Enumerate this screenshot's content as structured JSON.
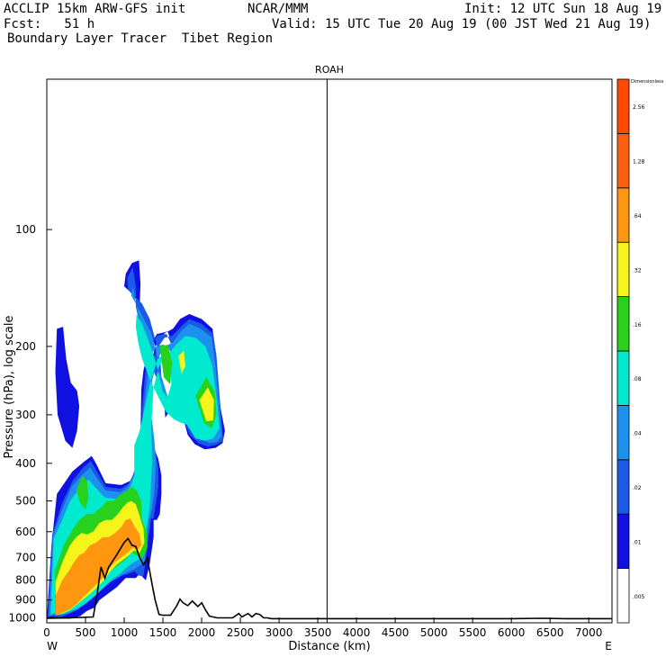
{
  "header": {
    "model": "ACCLIP 15km ARW-GFS init",
    "org": "NCAR/MMM",
    "init": "Init: 12 UTC Sun 18 Aug 19",
    "fcst": "Fcst:   51 h",
    "valid": "Valid: 15 UTC Tue 20 Aug 19 (00 JST Wed 21 Aug 19)",
    "subtitle": "Boundary Layer Tracer  Tibet Region"
  },
  "chart_data": {
    "type": "heatmap",
    "title": "ROAH",
    "xlabel": "Distance (km)",
    "ylabel": "Pressure (hPa), log scale",
    "x_ticks": [
      0,
      500,
      1000,
      1500,
      2000,
      2500,
      3000,
      3500,
      4000,
      4500,
      5000,
      5500,
      6000,
      6500,
      7000
    ],
    "x_end_labels": {
      "left": "W",
      "right": "E"
    },
    "y_ticks": [
      100,
      200,
      300,
      400,
      500,
      600,
      700,
      800,
      900,
      1000
    ],
    "y_scale": "log",
    "xlim": [
      0,
      7300
    ],
    "ylim": [
      1030,
      41
    ],
    "marker_x": 3620,
    "colorbar": {
      "unit_label": "Dimensionless",
      "levels": [
        ".005",
        ".01",
        ".02",
        ".04",
        ".08",
        ".16",
        ".32",
        ".64",
        "1.28",
        "2.56"
      ],
      "colors": [
        "#ffffff",
        "#1010e0",
        "#1a5ae6",
        "#1e90ee",
        "#00ead0",
        "#28d21c",
        "#f5f51c",
        "#ff9610",
        "#ff6010",
        "#ff4a00"
      ]
    },
    "terrain": {
      "x": [
        0,
        300,
        600,
        650,
        700,
        750,
        800,
        900,
        1000,
        1050,
        1100,
        1150,
        1200,
        1250,
        1300,
        1330,
        1360,
        1400,
        1450,
        1500,
        1600,
        1680,
        1720,
        1760,
        1820,
        1880,
        1950,
        2000,
        2050,
        2100,
        2200,
        2300,
        2400,
        2480,
        2520,
        2560,
        2600,
        2650,
        2700,
        2750,
        2800,
        2850,
        2900,
        3000,
        3500,
        4000,
        4500,
        5000,
        5500,
        6000,
        6400,
        6700,
        7000,
        7300
      ],
      "p": [
        1003,
        1000,
        995,
        870,
        740,
        790,
        740,
        690,
        640,
        625,
        650,
        655,
        700,
        730,
        700,
        760,
        820,
        900,
        980,
        985,
        985,
        930,
        895,
        915,
        930,
        905,
        935,
        915,
        955,
        990,
        1000,
        1000,
        1000,
        975,
        995,
        985,
        975,
        995,
        975,
        980,
        1000,
        1000,
        1005,
        1005,
        1005,
        1005,
        1005,
        1005,
        1005,
        1005,
        1003,
        1005,
        1005,
        1005
      ]
    },
    "tracer_regions": [
      {
        "level": 1,
        "x": [
          110,
          130,
          210,
          250,
          310,
          390,
          420,
          390,
          330,
          240,
          140
        ],
        "p": [
          233,
          180,
          178,
          215,
          248,
          260,
          285,
          330,
          365,
          350,
          300
        ]
      },
      {
        "level": 1,
        "x": [
          60,
          130,
          330,
          490,
          580,
          640,
          760,
          960,
          1100,
          1150,
          1210,
          1220,
          1250,
          1330,
          1420,
          1560,
          1620,
          1680,
          1700,
          1670,
          1590,
          1530,
          1520,
          1490,
          1460,
          1400,
          1300,
          1200,
          1080,
          1000,
          1020,
          1100,
          1190,
          1210,
          1200,
          1230,
          1270,
          1360,
          1470,
          1540,
          1610,
          1700,
          1760,
          1820,
          1910,
          2040,
          2180,
          2270,
          2300,
          2240,
          2180,
          2140,
          2000,
          1840,
          1720,
          1630,
          1520,
          1400,
          1330,
          1290,
          1300,
          1370,
          1440,
          1480,
          1480,
          1460,
          1420,
          1380,
          1380,
          1330,
          1280,
          1250,
          1200,
          1150,
          1090,
          1020,
          900,
          780,
          680,
          620,
          520,
          430,
          300,
          180,
          80,
          20,
          0
        ],
        "p": [
          650,
          480,
          420,
          395,
          383,
          402,
          450,
          455,
          442,
          420,
          345,
          258,
          230,
          200,
          186,
          183,
          197,
          222,
          258,
          285,
          293,
          305,
          285,
          250,
          225,
          200,
          175,
          155,
          145,
          140,
          130,
          122,
          120,
          138,
          158,
          172,
          188,
          213,
          252,
          280,
          292,
          300,
          305,
          338,
          357,
          368,
          365,
          355,
          330,
          285,
          205,
          180,
          170,
          165,
          170,
          180,
          185,
          200,
          230,
          280,
          330,
          360,
          390,
          430,
          480,
          540,
          560,
          560,
          620,
          725,
          800,
          790,
          770,
          790,
          790,
          790,
          835,
          870,
          900,
          940,
          960,
          990,
          1005,
          1005,
          1000,
          1005,
          1005
        ]
      },
      {
        "level": 2,
        "x": [
          70,
          200,
          330,
          470,
          570,
          640,
          760,
          960,
          1060,
          1110,
          1170,
          1220,
          1230,
          1270,
          1350,
          1420,
          1500,
          1550,
          1610,
          1660,
          1690,
          1660,
          1590,
          1520,
          1480,
          1470,
          1410,
          1330,
          1230,
          1130,
          1050,
          1040,
          1110,
          1150,
          1150,
          1190,
          1250,
          1340,
          1470,
          1540,
          1620,
          1690,
          1760,
          1850,
          1960,
          2080,
          2190,
          2280,
          2250,
          2190,
          2140,
          2000,
          1840,
          1730,
          1620,
          1520,
          1410,
          1340,
          1320,
          1340,
          1400,
          1440,
          1440,
          1400,
          1380,
          1350,
          1320,
          1280,
          1250,
          1200,
          1130,
          1060,
          950,
          800,
          680,
          600,
          500,
          410,
          300,
          180,
          80,
          10
        ],
        "p": [
          610,
          505,
          445,
          410,
          395,
          418,
          460,
          465,
          450,
          430,
          395,
          350,
          290,
          235,
          198,
          188,
          186,
          186,
          198,
          225,
          258,
          282,
          292,
          283,
          245,
          220,
          195,
          170,
          155,
          148,
          143,
          133,
          125,
          140,
          158,
          172,
          195,
          220,
          258,
          285,
          296,
          303,
          308,
          338,
          355,
          362,
          358,
          350,
          300,
          210,
          185,
          175,
          170,
          178,
          188,
          190,
          205,
          235,
          290,
          335,
          370,
          410,
          460,
          520,
          555,
          555,
          610,
          700,
          780,
          780,
          760,
          770,
          780,
          800,
          845,
          880,
          915,
          950,
          975,
          995,
          990,
          995
        ]
      },
      {
        "level": 3,
        "x": [
          80,
          200,
          320,
          450,
          560,
          640,
          760,
          950,
          1040,
          1100,
          1170,
          1200,
          1240,
          1330,
          1410,
          1500,
          1560,
          1620,
          1660,
          1640,
          1580,
          1520,
          1470,
          1420,
          1350,
          1240,
          1150,
          1090,
          1110,
          1140,
          1180,
          1250,
          1340,
          1470,
          1550,
          1630,
          1700,
          1780,
          1870,
          1980,
          2100,
          2200,
          2260,
          2230,
          2180,
          2130,
          1990,
          1840,
          1740,
          1630,
          1530,
          1430,
          1360,
          1350,
          1390,
          1410,
          1390,
          1360,
          1320,
          1290,
          1260,
          1210,
          1130,
          1060,
          960,
          820,
          700,
          620,
          520,
          420,
          300,
          190,
          100,
          30
        ],
        "p": [
          615,
          525,
          460,
          430,
          410,
          435,
          470,
          475,
          460,
          440,
          410,
          360,
          300,
          215,
          200,
          198,
          200,
          212,
          238,
          268,
          283,
          275,
          245,
          210,
          185,
          168,
          155,
          148,
          140,
          150,
          165,
          182,
          208,
          235,
          265,
          290,
          300,
          305,
          312,
          345,
          355,
          352,
          340,
          290,
          225,
          190,
          180,
          175,
          182,
          195,
          200,
          215,
          245,
          300,
          350,
          400,
          470,
          525,
          560,
          650,
          720,
          730,
          750,
          760,
          780,
          810,
          850,
          880,
          915,
          945,
          970,
          985,
          980,
          990
        ]
      },
      {
        "level": 4,
        "x": [
          90,
          200,
          300,
          420,
          540,
          620,
          750,
          920,
          1010,
          1080,
          1130,
          1130,
          1200,
          1330,
          1430,
          1520,
          1590,
          1610,
          1560,
          1500,
          1440,
          1370,
          1300,
          1230,
          1160,
          1150,
          1180,
          1230,
          1320,
          1440,
          1540,
          1640,
          1720,
          1810,
          1920,
          2040,
          2150,
          2230,
          2200,
          2140,
          2050,
          1920,
          1790,
          1670,
          1560,
          1450,
          1380,
          1350,
          1360,
          1330,
          1290,
          1260,
          1200,
          1120,
          1040,
          950,
          830,
          720,
          640,
          540,
          440,
          320,
          220,
          120,
          50
        ],
        "p": [
          625,
          560,
          500,
          465,
          440,
          460,
          490,
          495,
          480,
          460,
          430,
          360,
          330,
          250,
          215,
          210,
          225,
          250,
          270,
          262,
          232,
          208,
          190,
          175,
          165,
          178,
          195,
          215,
          240,
          270,
          295,
          308,
          314,
          318,
          345,
          350,
          345,
          325,
          280,
          225,
          200,
          190,
          188,
          198,
          210,
          225,
          255,
          320,
          400,
          520,
          580,
          680,
          705,
          720,
          740,
          770,
          800,
          840,
          870,
          905,
          935,
          960,
          975,
          970,
          980
        ]
      },
      {
        "level": 5,
        "x": [
          100,
          220,
          340,
          420,
          520,
          600,
          700,
          780,
          860,
          960,
          1040,
          1100,
          1160,
          1220,
          1230,
          1290,
          1300,
          1240,
          1160,
          1090,
          1010,
          930,
          850,
          760,
          680,
          600,
          500,
          400,
          300,
          200,
          110
        ],
        "p": [
          760,
          650,
          590,
          560,
          540,
          540,
          520,
          500,
          500,
          480,
          470,
          460,
          470,
          500,
          560,
          600,
          660,
          700,
          690,
          680,
          710,
          730,
          750,
          780,
          820,
          850,
          880,
          910,
          950,
          975,
          985
        ]
      },
      {
        "level": 5,
        "x": [
          380,
          460,
          520,
          540,
          500,
          430
        ],
        "p": [
          470,
          430,
          445,
          490,
          525,
          505
        ]
      },
      {
        "level": 5,
        "x": [
          1460,
          1560,
          1620,
          1590,
          1510
        ],
        "p": [
          200,
          198,
          220,
          250,
          240
        ]
      },
      {
        "level": 5,
        "x": [
          1920,
          2060,
          2170,
          2190,
          2130,
          2030
        ],
        "p": [
          268,
          240,
          262,
          300,
          325,
          315
        ]
      },
      {
        "level": 6,
        "x": [
          110,
          200,
          300,
          380,
          450,
          520,
          600,
          680,
          760,
          840,
          920,
          980,
          1040,
          1090,
          1150,
          1190,
          1250,
          1260,
          1200,
          1130,
          1060,
          980,
          900,
          820,
          740,
          660,
          580,
          490,
          400,
          300,
          200,
          120
        ],
        "p": [
          810,
          720,
          650,
          620,
          605,
          610,
          600,
          570,
          560,
          560,
          540,
          520,
          505,
          500,
          510,
          540,
          590,
          640,
          680,
          670,
          690,
          710,
          730,
          760,
          800,
          830,
          860,
          890,
          920,
          955,
          975,
          985
        ]
      },
      {
        "level": 6,
        "x": [
          1970,
          2080,
          2160,
          2150,
          2060
        ],
        "p": [
          275,
          255,
          275,
          310,
          312
        ]
      },
      {
        "level": 6,
        "x": [
          1700,
          1770,
          1790,
          1740
        ],
        "p": [
          212,
          205,
          225,
          235
        ]
      },
      {
        "level": 7,
        "x": [
          110,
          200,
          280,
          350,
          420,
          480,
          560,
          640,
          720,
          800,
          880,
          960,
          1020,
          1080,
          1130,
          1200,
          1220,
          1170,
          1110,
          1040,
          960,
          880,
          800,
          720,
          640,
          560,
          480,
          400,
          300,
          200,
          120
        ],
        "p": [
          880,
          800,
          760,
          720,
          690,
          680,
          650,
          640,
          620,
          620,
          605,
          585,
          560,
          555,
          580,
          610,
          650,
          670,
          660,
          680,
          700,
          720,
          750,
          790,
          820,
          850,
          880,
          915,
          950,
          970,
          985
        ]
      }
    ]
  }
}
